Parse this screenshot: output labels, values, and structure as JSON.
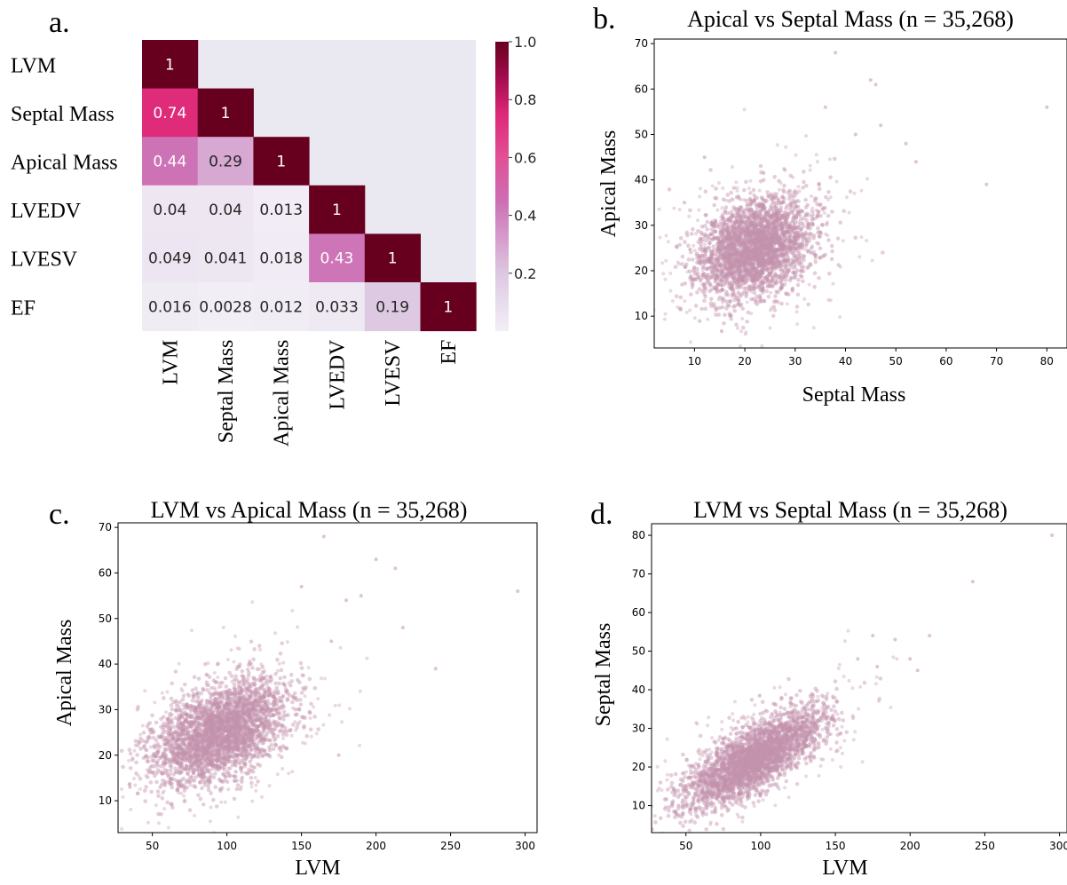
{
  "panels": {
    "a": {
      "letter": "a."
    },
    "b": {
      "letter": "b."
    },
    "c": {
      "letter": "c."
    },
    "d": {
      "letter": "d."
    }
  },
  "colors": {
    "point": "#c493ad",
    "cell_bg": "#eae9f2",
    "heat_low": "#f2eff6",
    "heat_high": "#67001f"
  },
  "chart_data": [
    {
      "id": "a",
      "type": "heatmap",
      "row_labels": [
        "LVM",
        "Septal Mass",
        "Apical Mass",
        "LVEDV",
        "LVESV",
        "EF"
      ],
      "col_labels": [
        "LVM",
        "Septal Mass",
        "Apical Mass",
        "LVEDV",
        "LVESV",
        "EF"
      ],
      "values": [
        [
          1
        ],
        [
          0.74,
          1
        ],
        [
          0.44,
          0.29,
          1
        ],
        [
          0.04,
          0.04,
          0.013,
          1
        ],
        [
          0.049,
          0.041,
          0.018,
          0.43,
          1
        ],
        [
          0.016,
          0.0028,
          0.012,
          0.033,
          0.19,
          1
        ]
      ],
      "mask": "upper-triangle",
      "colorbar_ticks": [
        "1.0",
        "0.8",
        "0.6",
        "0.4",
        "0.2"
      ],
      "colorbar_range": [
        0,
        1
      ]
    },
    {
      "id": "b",
      "type": "scatter",
      "title": "Apical vs Septal Mass (n = 35,268)",
      "xlabel": "Septal Mass",
      "ylabel": "Apical Mass",
      "xlim": [
        2,
        84
      ],
      "ylim": [
        3,
        71
      ],
      "xticks": [
        "10",
        "20",
        "30",
        "40",
        "50",
        "60",
        "70",
        "80"
      ],
      "yticks": [
        "10",
        "20",
        "30",
        "40",
        "50",
        "60",
        "70"
      ],
      "cloud": {
        "center": [
          22,
          25
        ],
        "sd": [
          5.5,
          5.5
        ],
        "corr": 0.29,
        "n": 2600
      },
      "outliers": [
        [
          80,
          56
        ],
        [
          38,
          68
        ],
        [
          45,
          62
        ],
        [
          46,
          61
        ],
        [
          68,
          39
        ],
        [
          52,
          48
        ],
        [
          54,
          44
        ],
        [
          42,
          50
        ],
        [
          47,
          52
        ],
        [
          12,
          45
        ],
        [
          8,
          35
        ],
        [
          36,
          56
        ]
      ]
    },
    {
      "id": "c",
      "type": "scatter",
      "title": "LVM vs Apical Mass (n = 35,268)",
      "xlabel": "LVM",
      "ylabel": "Apical Mass",
      "xlim": [
        27,
        308
      ],
      "ylim": [
        3,
        71
      ],
      "xticks": [
        "50",
        "100",
        "150",
        "200",
        "250",
        "300"
      ],
      "yticks": [
        "10",
        "20",
        "30",
        "40",
        "50",
        "60",
        "70"
      ],
      "cloud": {
        "center": [
          95,
          25
        ],
        "sd": [
          22,
          5.5
        ],
        "corr": 0.44,
        "n": 2600
      },
      "outliers": [
        [
          295,
          56
        ],
        [
          165,
          68
        ],
        [
          200,
          63
        ],
        [
          213,
          61
        ],
        [
          240,
          39
        ],
        [
          190,
          55
        ],
        [
          180,
          54
        ],
        [
          218,
          48
        ],
        [
          175,
          20
        ],
        [
          35,
          13
        ],
        [
          150,
          57
        ],
        [
          170,
          45
        ]
      ]
    },
    {
      "id": "d",
      "type": "scatter",
      "title": "LVM vs Septal Mass (n = 35,268)",
      "xlabel": "LVM",
      "ylabel": "Septal Mass",
      "xlim": [
        27,
        305
      ],
      "ylim": [
        3,
        83
      ],
      "xticks": [
        "50",
        "100",
        "150",
        "200",
        "250",
        "300"
      ],
      "yticks": [
        "10",
        "20",
        "30",
        "40",
        "50",
        "60",
        "70",
        "80"
      ],
      "cloud": {
        "center": [
          95,
          22
        ],
        "sd": [
          22,
          6
        ],
        "corr": 0.74,
        "n": 2600
      },
      "outliers": [
        [
          295,
          80
        ],
        [
          242,
          68
        ],
        [
          213,
          54
        ],
        [
          190,
          53
        ],
        [
          175,
          54
        ],
        [
          205,
          45
        ],
        [
          165,
          48
        ],
        [
          200,
          48
        ],
        [
          178,
          46
        ],
        [
          45,
          10
        ]
      ]
    }
  ]
}
